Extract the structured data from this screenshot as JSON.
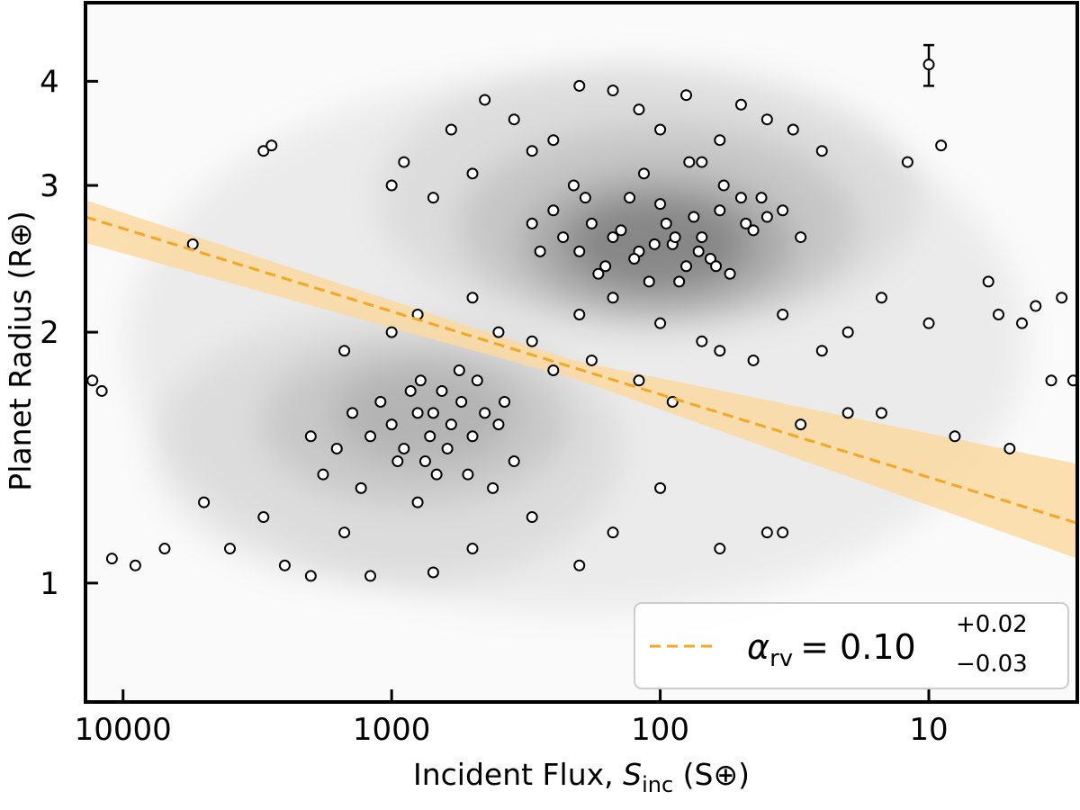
{
  "chart_data": {
    "type": "scatter",
    "xlabel_parts": [
      "Incident Flux, ",
      "S",
      "inc",
      " (S⊕)"
    ],
    "ylabel": "Planet Radius (R⊕)",
    "xscale": "log",
    "yscale": "log",
    "x_inverted": true,
    "xlim": [
      13800,
      2.8
    ],
    "ylim": [
      0.72,
      4.97
    ],
    "xticks": [
      10000,
      1000,
      100,
      10
    ],
    "yticks": [
      1,
      2,
      3,
      4
    ],
    "point_color": "#ffffff",
    "x": [
      150,
      120,
      95,
      80,
      70,
      60,
      110,
      130,
      200,
      180,
      90,
      75,
      65,
      55,
      45,
      160,
      140,
      100,
      85,
      50,
      230,
      250,
      170,
      125,
      105,
      88,
      72,
      62,
      48,
      40,
      300,
      280,
      210,
      190,
      115,
      78,
      58,
      42,
      35,
      30,
      700,
      600,
      550,
      500,
      800,
      900,
      1000,
      650,
      450,
      750,
      1200,
      1400,
      850,
      520,
      480,
      620,
      720,
      950,
      1100,
      400,
      1600,
      1800,
      2000,
      1300,
      380,
      350,
      420,
      560,
      680,
      780,
      600,
      450,
      300,
      200,
      150,
      120,
      80,
      60,
      40,
      500,
      900,
      1000,
      700,
      350,
      250,
      100,
      70,
      50,
      32,
      25,
      400,
      300,
      200,
      150,
      100,
      60,
      500,
      800,
      250,
      180,
      35,
      25,
      20,
      15,
      45,
      70,
      1000,
      1500,
      120,
      90,
      3000,
      4000,
      2500,
      1500,
      800,
      500,
      300,
      200,
      150,
      100,
      60,
      40,
      35,
      7000,
      9000,
      11000,
      5000,
      2000,
      1200,
      700,
      13000,
      12000,
      5500,
      3000,
      2800,
      10,
      8,
      5,
      4,
      3.5,
      6,
      3.2,
      9,
      12,
      15,
      20,
      30,
      2.9,
      5.5,
      4.5
    ],
    "y": [
      2.6,
      2.5,
      2.7,
      2.4,
      2.6,
      2.8,
      2.3,
      2.9,
      2.5,
      2.7,
      2.55,
      2.75,
      2.45,
      2.35,
      2.65,
      2.4,
      2.65,
      2.85,
      2.3,
      2.9,
      2.6,
      2.8,
      2.35,
      2.45,
      2.55,
      2.6,
      2.5,
      2.4,
      2.7,
      2.75,
      2.7,
      2.5,
      3.0,
      2.9,
      3.1,
      3.2,
      3.0,
      2.9,
      2.8,
      2.6,
      1.6,
      1.55,
      1.65,
      1.5,
      1.6,
      1.45,
      1.55,
      1.7,
      1.6,
      1.4,
      1.5,
      1.6,
      1.7,
      1.35,
      1.75,
      1.45,
      1.5,
      1.4,
      1.65,
      1.55,
      1.45,
      1.35,
      1.5,
      1.3,
      1.65,
      1.4,
      1.3,
      1.8,
      1.35,
      1.75,
      3.5,
      3.8,
      3.3,
      3.95,
      3.9,
      3.7,
      3.85,
      3.4,
      3.6,
      3.1,
      3.2,
      3.0,
      2.9,
      3.6,
      3.4,
      3.5,
      3.2,
      3.75,
      3.5,
      3.3,
      2.0,
      1.95,
      2.1,
      2.2,
      2.05,
      1.9,
      2.2,
      2.1,
      1.8,
      1.85,
      2.1,
      1.9,
      2.0,
      2.2,
      1.85,
      1.95,
      2.0,
      1.9,
      1.75,
      1.65,
      1.2,
      1.1,
      1.05,
      1.15,
      1.25,
      1.1,
      1.2,
      1.05,
      1.15,
      1.3,
      1.1,
      1.15,
      1.15,
      1.1,
      1.05,
      1.07,
      1.25,
      1.02,
      1.02,
      1.03,
      1.75,
      1.7,
      2.55,
      3.3,
      3.35,
      2.05,
      1.5,
      1.45,
      2.15,
      1.75,
      2.3,
      2.2,
      3.35,
      3.2,
      1.6,
      1.6,
      1.55,
      1.75,
      2.1,
      2.05
    ],
    "error_bar": {
      "x": 10,
      "y": 4.19,
      "err_plus": 0.23,
      "err_minus": 0.24
    },
    "fit": {
      "name_parts": {
        "symbol": "α",
        "subscript": "rv",
        "value": "= 0.10",
        "plus": "+0.02",
        "minus": "−0.03"
      },
      "color": "#f5a623",
      "band_color": "#fbd9a0",
      "x": [
        13800,
        2.8
      ],
      "y": [
        2.75,
        1.18
      ],
      "band_x": [
        13800,
        210,
        2.8
      ],
      "band_upper": [
        2.88,
        1.85,
        1.39
      ],
      "band_lower": [
        2.56,
        1.76,
        1.07
      ]
    },
    "legend_position": "lower right"
  }
}
